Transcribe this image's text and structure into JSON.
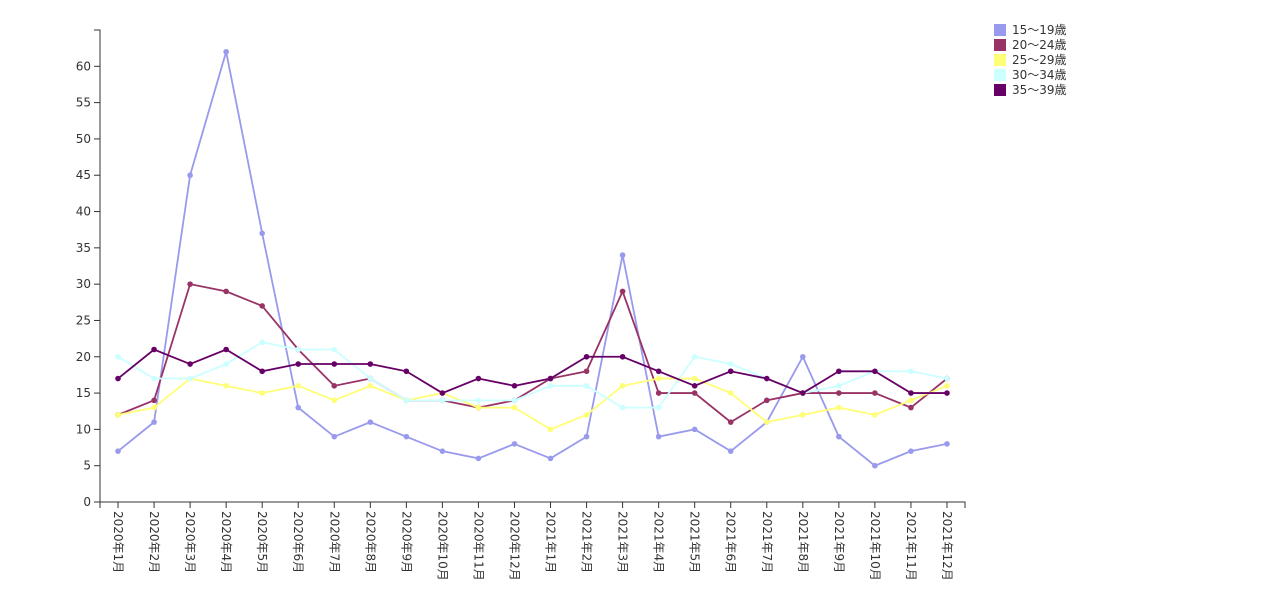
{
  "chart_data": {
    "type": "line",
    "categories": [
      "2020年1月",
      "2020年2月",
      "2020年3月",
      "2020年4月",
      "2020年5月",
      "2020年6月",
      "2020年7月",
      "2020年8月",
      "2020年9月",
      "2020年10月",
      "2020年11月",
      "2020年12月",
      "2021年1月",
      "2021年2月",
      "2021年3月",
      "2021年4月",
      "2021年5月",
      "2021年6月",
      "2021年7月",
      "2021年8月",
      "2021年9月",
      "2021年10月",
      "2021年11月",
      "2021年12月"
    ],
    "series": [
      {
        "name": "15～19歳",
        "color": "#9999ee",
        "values": [
          7,
          11,
          45,
          62,
          37,
          13,
          9,
          11,
          9,
          7,
          6,
          8,
          6,
          9,
          34,
          9,
          10,
          7,
          11,
          20,
          9,
          5,
          7,
          8
        ]
      },
      {
        "name": "20～24歳",
        "color": "#993366",
        "values": [
          12,
          14,
          30,
          29,
          27,
          21,
          16,
          17,
          14,
          14,
          13,
          14,
          17,
          18,
          29,
          15,
          15,
          11,
          14,
          15,
          15,
          15,
          13,
          17
        ]
      },
      {
        "name": "25～29歳",
        "color": "#ffff77",
        "values": [
          12,
          13,
          17,
          16,
          15,
          16,
          14,
          16,
          14,
          15,
          13,
          13,
          10,
          12,
          16,
          17,
          17,
          15,
          11,
          12,
          13,
          12,
          14,
          16
        ]
      },
      {
        "name": "30～34歳",
        "color": "#ccffff",
        "values": [
          20,
          17,
          17,
          19,
          22,
          21,
          21,
          17,
          14,
          14,
          14,
          14,
          16,
          16,
          13,
          13,
          20,
          19,
          17,
          15,
          16,
          18,
          18,
          17
        ]
      },
      {
        "name": "35～39歳",
        "color": "#660066",
        "values": [
          17,
          21,
          19,
          21,
          18,
          19,
          19,
          19,
          18,
          15,
          17,
          16,
          17,
          20,
          20,
          18,
          16,
          18,
          17,
          15,
          18,
          18,
          15,
          15
        ]
      }
    ],
    "ylim": [
      0,
      65
    ],
    "yticks": [
      0,
      5,
      10,
      15,
      20,
      25,
      30,
      35,
      40,
      45,
      50,
      55,
      60
    ],
    "grid": false,
    "legend": "top-right"
  }
}
